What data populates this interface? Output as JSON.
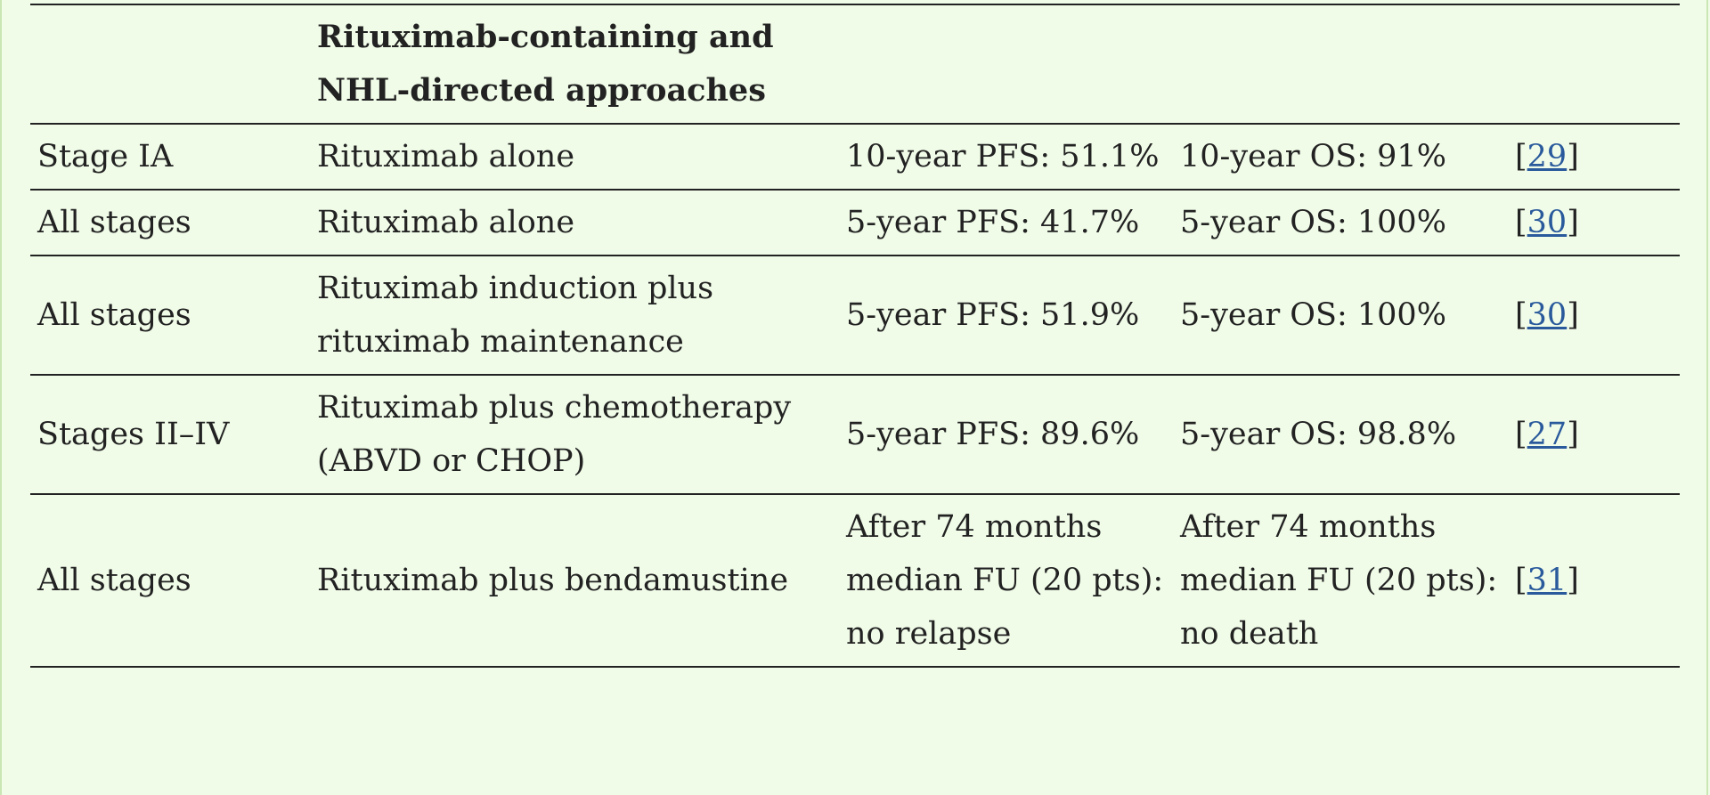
{
  "table": {
    "header": {
      "col1": "",
      "col2": "Rituximab-containing and NHL-directed approaches",
      "col3": "",
      "col4": "",
      "col5": ""
    },
    "rows": [
      {
        "stage": "Stage IA",
        "treatment": "Rituximab alone",
        "pfs": "10-year PFS: 51.1%",
        "os": "10-year OS: 91%",
        "ref": "29"
      },
      {
        "stage": "All stages",
        "treatment": "Rituximab alone",
        "pfs": "5-year PFS: 41.7%",
        "os": "5-year OS: 100%",
        "ref": "30"
      },
      {
        "stage": "All stages",
        "treatment": "Rituximab induction plus rituximab maintenance",
        "pfs": "5-year PFS: 51.9%",
        "os": "5-year OS: 100%",
        "ref": "30"
      },
      {
        "stage": "Stages II–IV",
        "treatment": "Rituximab plus chemotherapy (ABVD or CHOP)",
        "pfs": "5-year PFS: 89.6%",
        "os": "5-year OS: 98.8%",
        "ref": "27"
      },
      {
        "stage": "All stages",
        "treatment": "Rituximab plus bendamustine",
        "pfs": "After 74 months median FU (20 pts): no relapse",
        "os": "After 74 months median FU (20 pts): no death",
        "ref": "31"
      }
    ]
  },
  "colors": {
    "background": "#f0fce8",
    "text": "#222222",
    "link": "#2a5a9c"
  }
}
